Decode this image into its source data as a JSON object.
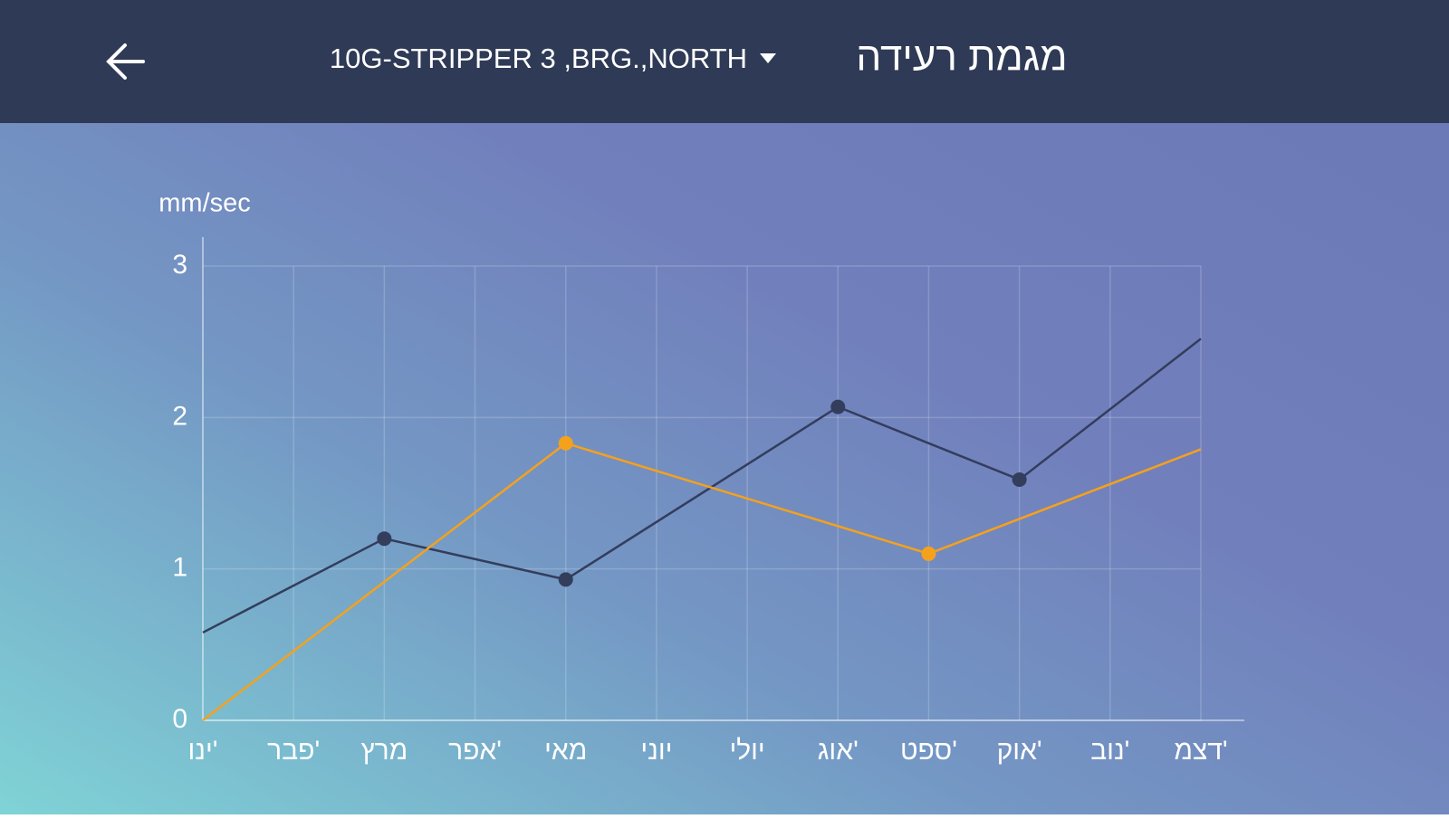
{
  "header": {
    "title": "מגמת רעידה",
    "selector": "10G-STRIPPER 3 ,BRG.,NORTH"
  },
  "chart_data": {
    "type": "line",
    "y_label": "mm/sec",
    "categories": [
      "ינו'",
      "פבר'",
      "מרץ",
      "אפר'",
      "מאי",
      "יוני",
      "יולי",
      "אוג'",
      "ספט'",
      "אוק'",
      "נוב'",
      "דצמ'"
    ],
    "series": [
      {
        "color": "#333d5c",
        "x": [
          "ינו'",
          "מרץ",
          "מאי",
          "אוג'",
          "אוק'",
          "דצמ'"
        ],
        "values": [
          0.58,
          1.2,
          0.93,
          2.07,
          1.59,
          2.52
        ]
      },
      {
        "color": "#f5a11c",
        "x": [
          "ינו'",
          "מאי",
          "ספט'",
          "דצמ'"
        ],
        "values": [
          0,
          1.83,
          1.1,
          1.79
        ]
      }
    ],
    "ylim": [
      0,
      3
    ],
    "yticks": [
      0,
      1,
      2,
      3
    ],
    "grid": true
  }
}
